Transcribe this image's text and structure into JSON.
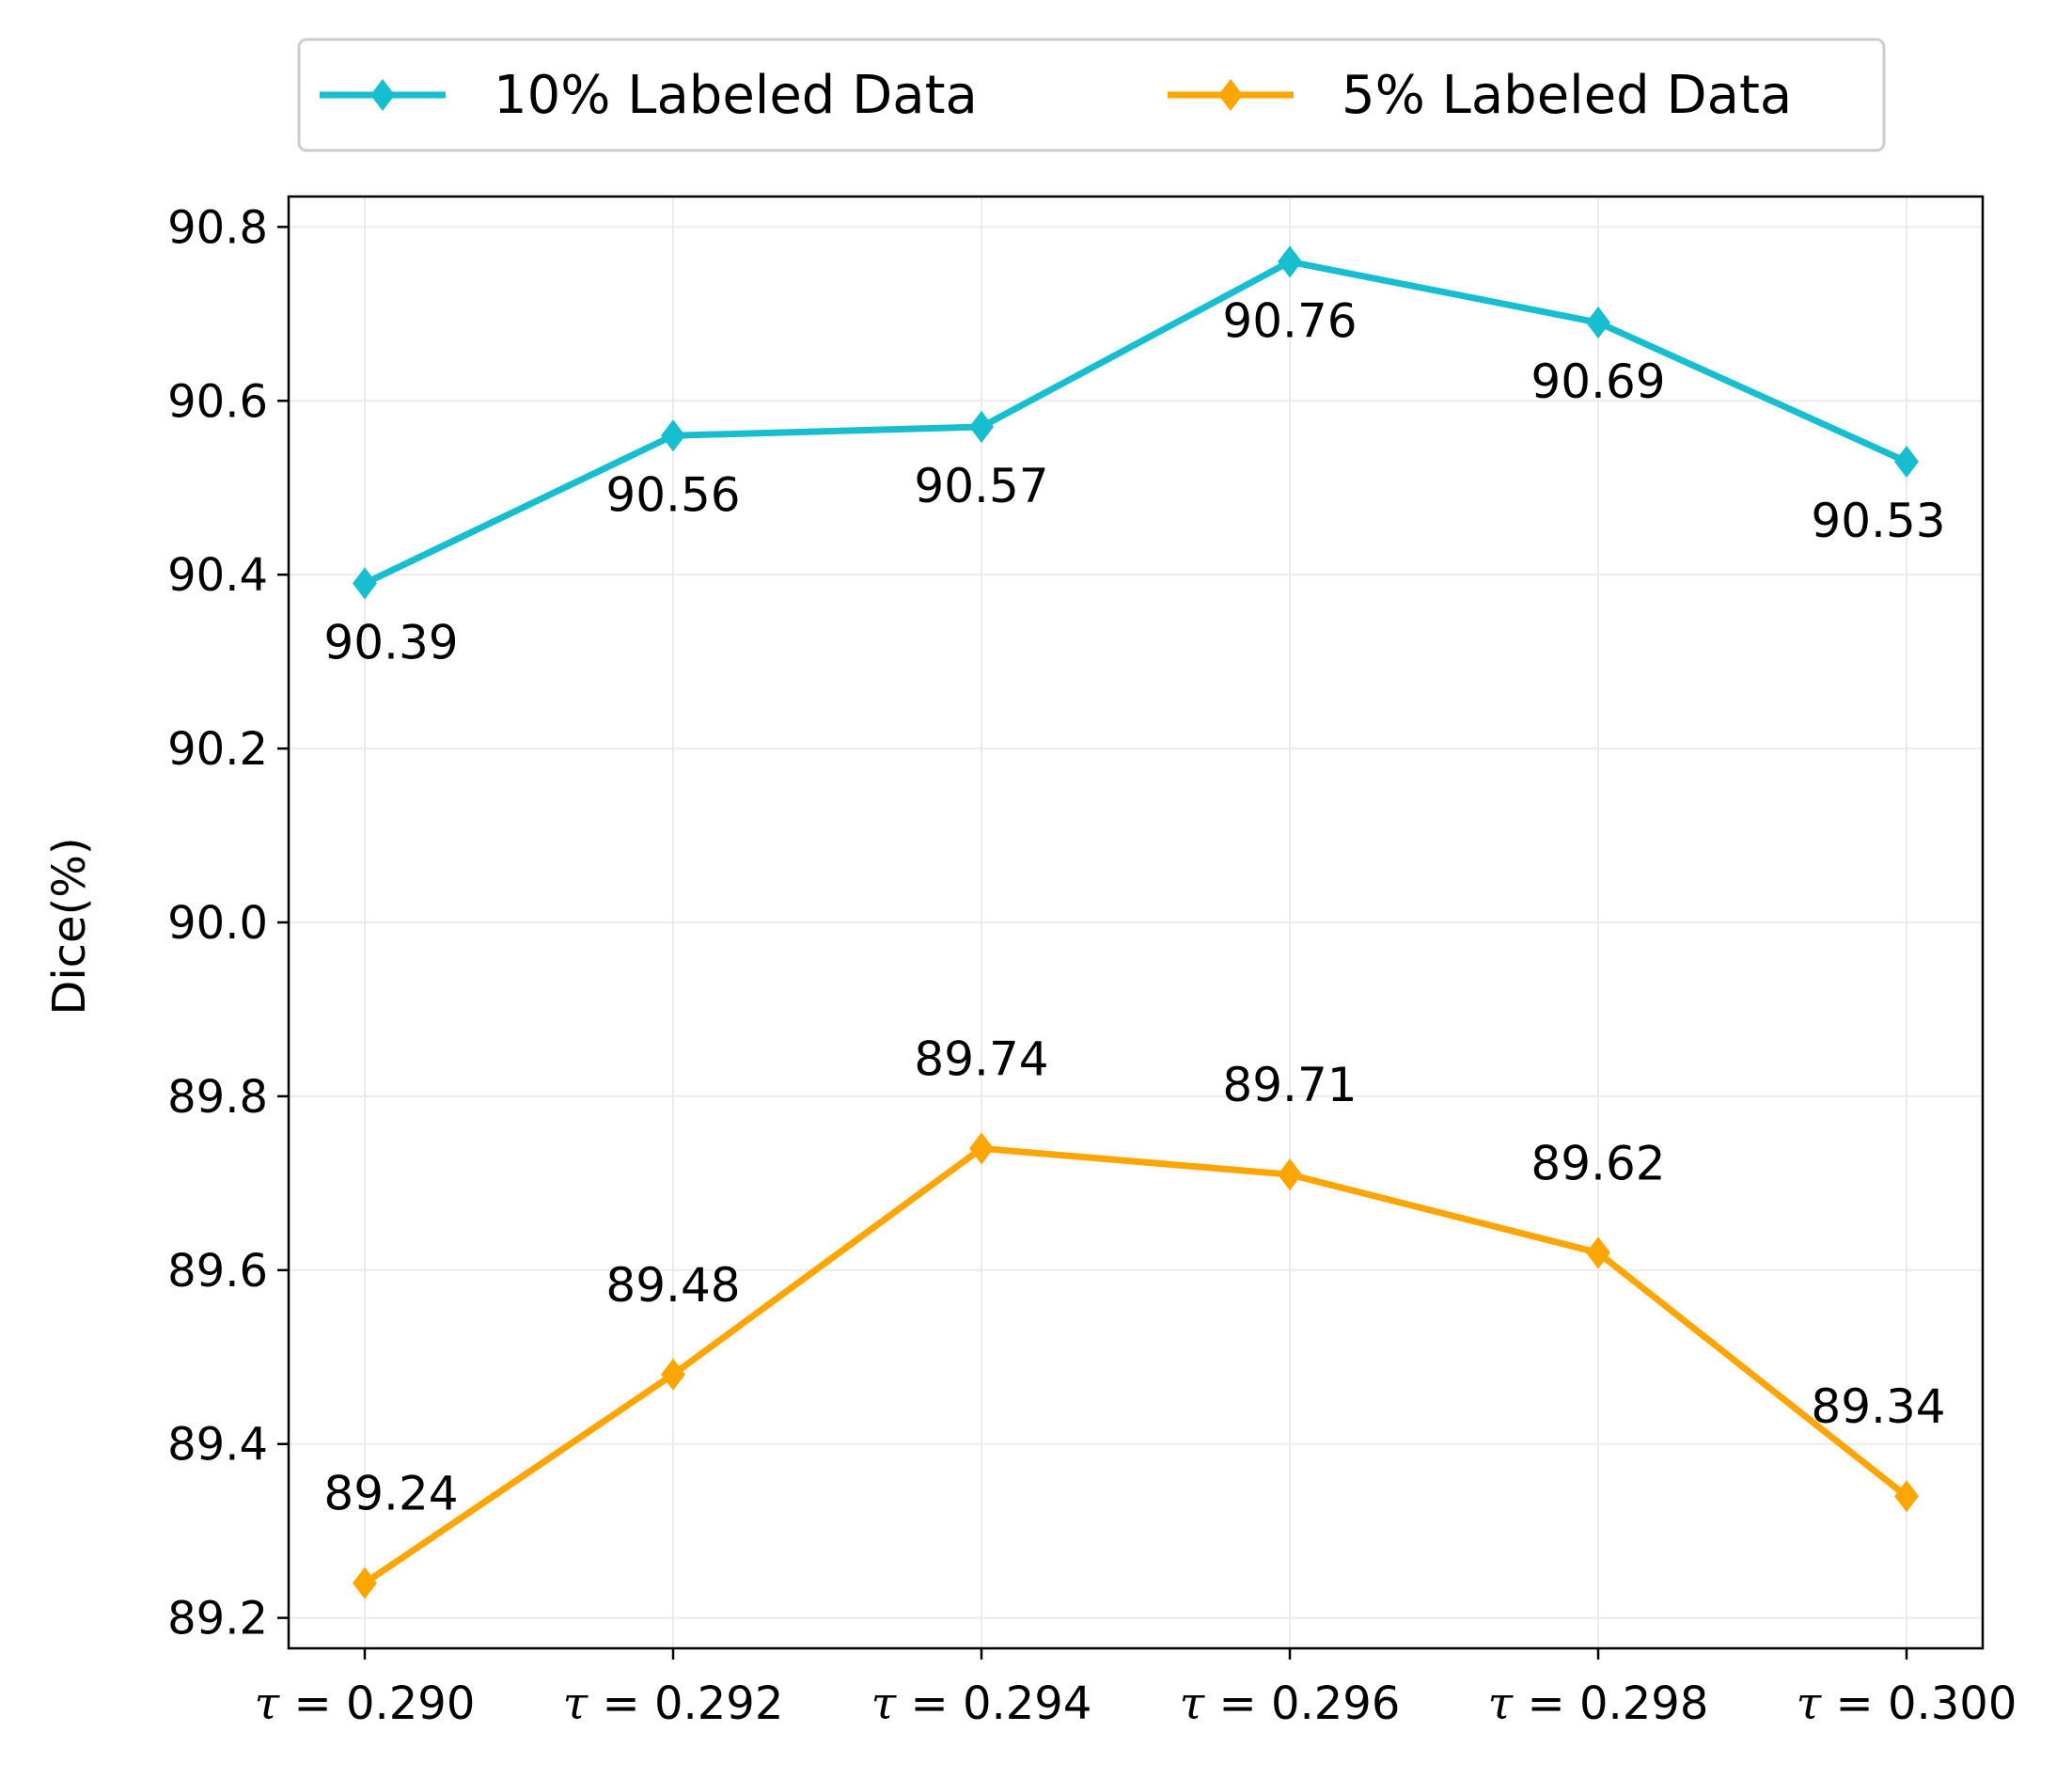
{
  "chart_data": {
    "type": "line",
    "title": "",
    "xlabel": "",
    "ylabel": "Dice(%)",
    "categories": [
      "τ = 0.290",
      "τ = 0.292",
      "τ = 0.294",
      "τ = 0.296",
      "τ = 0.298",
      "τ = 0.300"
    ],
    "tau_values": [
      "0.290",
      "0.292",
      "0.294",
      "0.296",
      "0.298",
      "0.300"
    ],
    "ylim": [
      89.165,
      90.835
    ],
    "yticks": [
      89.2,
      89.4,
      89.6,
      89.8,
      90.0,
      90.2,
      90.4,
      90.6,
      90.8
    ],
    "ytick_labels": [
      "89.2",
      "89.4",
      "89.6",
      "89.8",
      "90.0",
      "90.2",
      "90.4",
      "90.6",
      "90.8"
    ],
    "grid": true,
    "legend_position": "top-center",
    "series": [
      {
        "name": "10% Labeled Data",
        "color": "#17becf",
        "marker": "diamond",
        "values": [
          90.39,
          90.56,
          90.57,
          90.76,
          90.69,
          90.53
        ],
        "labels": [
          "90.39",
          "90.56",
          "90.57",
          "90.76",
          "90.69",
          "90.53"
        ],
        "label_position": "below"
      },
      {
        "name": "5% Labeled Data",
        "color": "#ffa500",
        "marker": "diamond",
        "values": [
          89.24,
          89.48,
          89.74,
          89.71,
          89.62,
          89.34
        ],
        "labels": [
          "89.24",
          "89.48",
          "89.74",
          "89.71",
          "89.62",
          "89.34"
        ],
        "label_position": "above"
      }
    ]
  }
}
